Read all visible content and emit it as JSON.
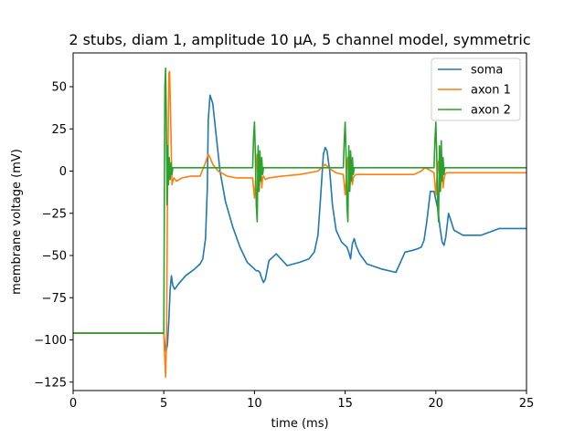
{
  "chart_data": {
    "type": "line",
    "title": "2 stubs, diam 1, amplitude 10 μA, 5 channel model, symmetric",
    "xlabel": "time (ms)",
    "ylabel": "membrane voltage (mV)",
    "xlim": [
      0,
      25
    ],
    "ylim": [
      -130,
      70
    ],
    "xticks": [
      0,
      5,
      10,
      15,
      20,
      25
    ],
    "xtick_labels": [
      "0",
      "5",
      "10",
      "15",
      "20",
      "25"
    ],
    "yticks": [
      -125,
      -100,
      -75,
      -50,
      -25,
      0,
      25,
      50
    ],
    "ytick_labels": [
      "−125",
      "−100",
      "−75",
      "−50",
      "−25",
      "0",
      "25",
      "50"
    ],
    "grid": false,
    "legend_position": "top-right",
    "series": [
      {
        "name": "soma",
        "color": "#1f77b4",
        "x": [
          0,
          4.95,
          5.0,
          5.05,
          5.12,
          5.2,
          5.28,
          5.35,
          5.42,
          5.5,
          5.6,
          5.8,
          6.2,
          6.7,
          7.0,
          7.15,
          7.3,
          7.4,
          7.45,
          7.55,
          7.7,
          7.9,
          8.1,
          8.4,
          8.8,
          9.2,
          9.6,
          10.0,
          10.1,
          10.2,
          10.3,
          10.35,
          10.42,
          10.5,
          10.6,
          10.8,
          11.2,
          11.8,
          12.5,
          13.0,
          13.3,
          13.5,
          13.65,
          13.8,
          13.9,
          14.0,
          14.15,
          14.3,
          14.5,
          14.8,
          15.0,
          15.1,
          15.2,
          15.3,
          15.35,
          15.4,
          15.5,
          15.6,
          15.8,
          16.2,
          17.0,
          17.8,
          18.3,
          18.7,
          19.0,
          19.2,
          19.35,
          19.5,
          19.7,
          19.9,
          20.1,
          20.25,
          20.35,
          20.45,
          20.55,
          20.7,
          21.0,
          21.5,
          22.0,
          22.5,
          23.0,
          23.5,
          24.0,
          25.0
        ],
        "y": [
          -96,
          -96,
          -96,
          -102,
          -107,
          -103,
          -88,
          -70,
          -62,
          -68,
          -70,
          -67,
          -62,
          -58,
          -55,
          -52,
          -40,
          -10,
          30,
          45,
          40,
          20,
          0,
          -18,
          -33,
          -45,
          -54,
          -58,
          -59,
          -59,
          -60,
          -62,
          -64,
          -66,
          -64,
          -53,
          -49,
          -56,
          -54,
          -52,
          -48,
          -38,
          -15,
          10,
          14,
          12,
          0,
          -20,
          -35,
          -42,
          -44,
          -45,
          -48,
          -52,
          -47,
          -43,
          -40,
          -44,
          -49,
          -55,
          -58,
          -60,
          -48,
          -47,
          -46,
          -45,
          -41,
          -30,
          -12,
          -12,
          -22,
          -35,
          -42,
          -44,
          -39,
          -25,
          -35,
          -38,
          -38,
          -38,
          -36,
          -34,
          -34,
          -34
        ]
      },
      {
        "name": "axon 1",
        "color": "#ff7f0e",
        "x": [
          0,
          4.95,
          5.0,
          5.05,
          5.1,
          5.15,
          5.2,
          5.28,
          5.32,
          5.38,
          5.45,
          5.55,
          5.7,
          6.0,
          6.5,
          7.0,
          7.3,
          7.45,
          7.55,
          7.7,
          8.0,
          8.5,
          9.0,
          9.5,
          9.9,
          10.0,
          10.05,
          10.1,
          10.15,
          10.2,
          10.25,
          10.3,
          10.35,
          10.4,
          10.45,
          10.5,
          10.6,
          10.8,
          11.5,
          12.5,
          13.5,
          13.8,
          13.9,
          14.0,
          14.2,
          14.5,
          14.9,
          15.0,
          15.05,
          15.1,
          15.15,
          15.2,
          15.25,
          15.3,
          15.35,
          15.4,
          15.45,
          15.5,
          15.6,
          16.0,
          17.0,
          18.0,
          18.8,
          19.2,
          19.4,
          19.6,
          19.9,
          20.0,
          20.05,
          20.1,
          20.15,
          20.2,
          20.25,
          20.3,
          20.35,
          20.4,
          20.45,
          20.5,
          20.6,
          21.0,
          22.0,
          23.0,
          25.0
        ],
        "y": [
          -96,
          -96,
          -96,
          -110,
          -122,
          -100,
          -20,
          58,
          59,
          30,
          -8,
          -4,
          -6,
          -4,
          -3,
          -3,
          5,
          10,
          8,
          4,
          0,
          -3,
          -4,
          -4,
          -4,
          -16,
          -8,
          5,
          10,
          -8,
          -12,
          -4,
          6,
          -10,
          -4,
          -3,
          -5,
          -4,
          -3,
          -2,
          0,
          3,
          4,
          3,
          1,
          -1,
          -2,
          -14,
          -6,
          4,
          8,
          -5,
          -12,
          -4,
          5,
          -8,
          -4,
          -3,
          -2,
          -2,
          -2,
          -2,
          -2,
          0,
          2,
          1,
          -1,
          -14,
          -6,
          3,
          6,
          -6,
          -12,
          -4,
          5,
          -10,
          -5,
          -2,
          -1,
          -1,
          -1,
          -1,
          -1
        ]
      },
      {
        "name": "axon 2",
        "color": "#2ca02c",
        "x": [
          0,
          4.95,
          5.0,
          5.03,
          5.06,
          5.1,
          5.14,
          5.18,
          5.22,
          5.26,
          5.3,
          5.35,
          5.4,
          5.45,
          5.5,
          5.6,
          6.0,
          7.0,
          8.0,
          9.0,
          9.9,
          9.95,
          10.0,
          10.05,
          10.1,
          10.15,
          10.2,
          10.25,
          10.3,
          10.35,
          10.4,
          10.45,
          10.5,
          10.6,
          11.0,
          12.0,
          13.0,
          14.0,
          14.9,
          14.95,
          15.0,
          15.05,
          15.1,
          15.15,
          15.2,
          15.25,
          15.3,
          15.35,
          15.4,
          15.45,
          15.5,
          15.6,
          16.0,
          17.0,
          18.0,
          19.0,
          19.9,
          19.95,
          20.0,
          20.05,
          20.1,
          20.15,
          20.2,
          20.25,
          20.3,
          20.35,
          20.4,
          20.45,
          20.5,
          20.6,
          21.0,
          22.0,
          23.0,
          24.0,
          25.0
        ],
        "y": [
          -96,
          -96,
          -96,
          -20,
          50,
          61,
          30,
          -20,
          15,
          -8,
          8,
          -5,
          5,
          -2,
          2,
          2,
          2,
          2,
          2,
          2,
          2,
          20,
          29,
          10,
          -20,
          -30,
          15,
          -12,
          12,
          -6,
          8,
          -2,
          2,
          2,
          2,
          2,
          2,
          2,
          2,
          18,
          29,
          10,
          -20,
          -30,
          15,
          -12,
          12,
          -6,
          8,
          -2,
          2,
          2,
          2,
          2,
          2,
          2,
          2,
          18,
          29,
          10,
          -20,
          -30,
          15,
          -12,
          18,
          -6,
          8,
          -2,
          2,
          2,
          2,
          2,
          2,
          2,
          2
        ]
      }
    ]
  }
}
